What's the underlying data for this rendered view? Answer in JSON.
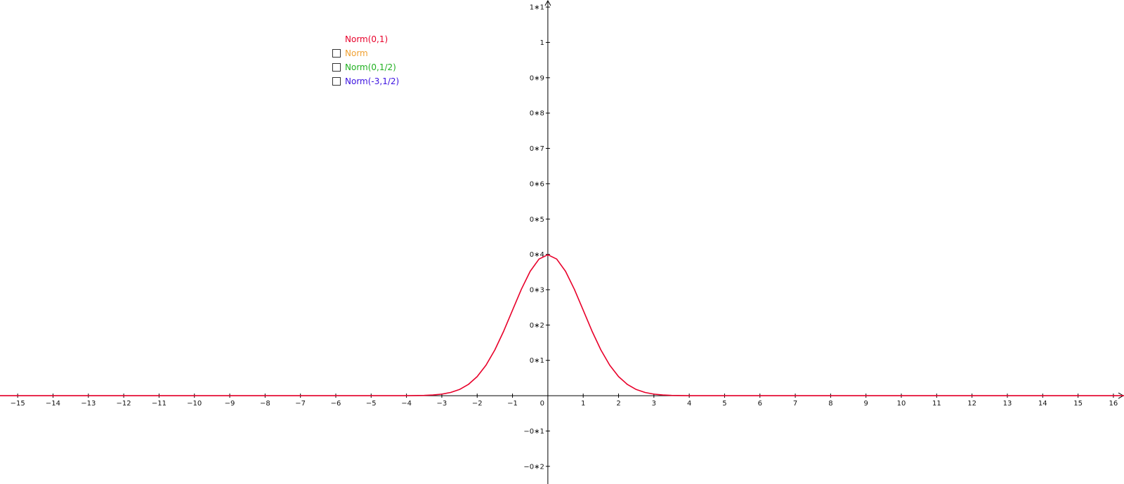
{
  "chart_data": {
    "type": "line",
    "title": "",
    "xlabel": "",
    "ylabel": "",
    "xlim": [
      -15.5,
      16.3
    ],
    "ylim": [
      -0.25,
      1.12
    ],
    "x_ticks": [
      -15,
      -14,
      -13,
      -12,
      -11,
      -10,
      -9,
      -8,
      -7,
      -6,
      -5,
      -4,
      -3,
      -2,
      -1,
      0,
      1,
      2,
      3,
      4,
      5,
      6,
      7,
      8,
      9,
      10,
      11,
      12,
      13,
      14,
      15,
      16
    ],
    "y_ticks": [
      {
        "value": 1.1,
        "label": "1∗1"
      },
      {
        "value": 1.0,
        "label": "1"
      },
      {
        "value": 0.9,
        "label": "0∗9"
      },
      {
        "value": 0.8,
        "label": "0∗8"
      },
      {
        "value": 0.7,
        "label": "0∗7"
      },
      {
        "value": 0.6,
        "label": "0∗6"
      },
      {
        "value": 0.5,
        "label": "0∗5"
      },
      {
        "value": 0.4,
        "label": "0∗4"
      },
      {
        "value": 0.3,
        "label": "0∗3"
      },
      {
        "value": 0.2,
        "label": "0∗2"
      },
      {
        "value": 0.1,
        "label": "0∗1"
      },
      {
        "value": -0.1,
        "label": "−0∗1"
      },
      {
        "value": -0.2,
        "label": "−0∗2"
      }
    ],
    "grid": false,
    "series": [
      {
        "name": "Norm(0,1)",
        "color": "#e8002a",
        "x": [
          -15.5,
          -6,
          -4.5,
          -4,
          -3.5,
          -3.25,
          -3,
          -2.75,
          -2.5,
          -2.25,
          -2,
          -1.75,
          -1.5,
          -1.25,
          -1,
          -0.75,
          -0.5,
          -0.25,
          0,
          0.25,
          0.5,
          0.75,
          1,
          1.25,
          1.5,
          1.75,
          2,
          2.25,
          2.5,
          2.75,
          3,
          3.25,
          3.5,
          4,
          4.5,
          6,
          16.3
        ],
        "y": [
          0,
          0,
          2e-05,
          0.00013,
          0.00087,
          0.00203,
          0.00443,
          0.00909,
          0.01753,
          0.03174,
          0.05399,
          0.08628,
          0.12952,
          0.18265,
          0.24197,
          0.30114,
          0.35207,
          0.38667,
          0.39894,
          0.38667,
          0.35207,
          0.30114,
          0.24197,
          0.18265,
          0.12952,
          0.08628,
          0.05399,
          0.03174,
          0.01753,
          0.00909,
          0.00443,
          0.00203,
          0.00087,
          0.00013,
          2e-05,
          0,
          0
        ]
      }
    ]
  },
  "legend": {
    "title": {
      "label": "Norm(0,1)",
      "color": "#e8002a"
    },
    "items": [
      {
        "label": "Norm",
        "color": "#f0a030",
        "checked": false
      },
      {
        "label": "Norm(0,1/2)",
        "color": "#20b020",
        "checked": false
      },
      {
        "label": "Norm(-3,1/2)",
        "color": "#3a10e0",
        "checked": false
      }
    ]
  }
}
